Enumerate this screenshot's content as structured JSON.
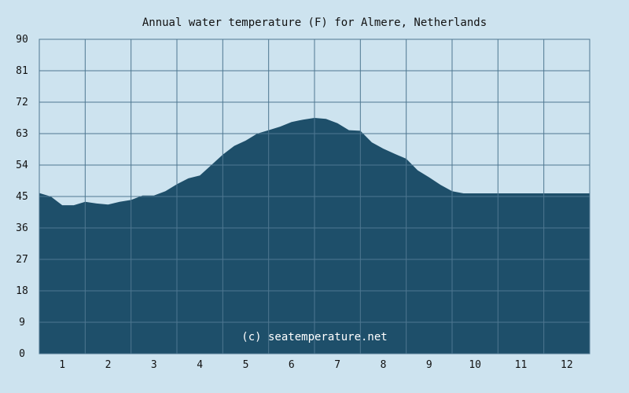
{
  "chart_data": {
    "type": "area",
    "title": "Annual water temperature (F) for Almere, Netherlands",
    "xlabel": "",
    "ylabel": "",
    "x_ticks": [
      "1",
      "2",
      "3",
      "4",
      "5",
      "6",
      "7",
      "8",
      "9",
      "10",
      "11",
      "12"
    ],
    "y_ticks": [
      "0",
      "9",
      "18",
      "27",
      "36",
      "45",
      "54",
      "63",
      "72",
      "81",
      "90"
    ],
    "ylim": [
      0,
      90
    ],
    "xlim": [
      0.5,
      12.5
    ],
    "grid": true,
    "x": [
      0.5,
      0.75,
      1.0,
      1.25,
      1.5,
      1.75,
      2.0,
      2.25,
      2.5,
      2.75,
      3.0,
      3.25,
      3.5,
      3.75,
      4.0,
      4.25,
      4.5,
      4.75,
      5.0,
      5.25,
      5.5,
      5.75,
      6.0,
      6.25,
      6.5,
      6.75,
      7.0,
      7.25,
      7.5,
      7.75,
      8.0,
      8.25,
      8.5,
      8.75,
      9.0,
      9.25,
      9.5,
      9.75,
      10.0,
      10.25,
      10.5,
      10.75,
      11.0,
      11.25,
      11.5,
      11.75,
      12.0,
      12.25,
      12.5
    ],
    "values": [
      46,
      45,
      42.5,
      42.5,
      43.5,
      43,
      42.7,
      43.5,
      44,
      45.3,
      45.3,
      46.5,
      48.5,
      50.2,
      51,
      54,
      57,
      59.5,
      61,
      63,
      64,
      65,
      66.3,
      67,
      67.5,
      67.2,
      66,
      64,
      63.8,
      60.5,
      58.7,
      57.2,
      55.8,
      52.5,
      50.5,
      48.3,
      46.5,
      45.9,
      45.9,
      45.9,
      45.9,
      45.9,
      45.9,
      45.9,
      45.9,
      45.9,
      45.9,
      45.9,
      45.9
    ],
    "fill_color": "#1e4f6a",
    "grid_color": "#4e7791",
    "background": "#cde3ef",
    "watermark": "(c) seatemperature.net"
  }
}
